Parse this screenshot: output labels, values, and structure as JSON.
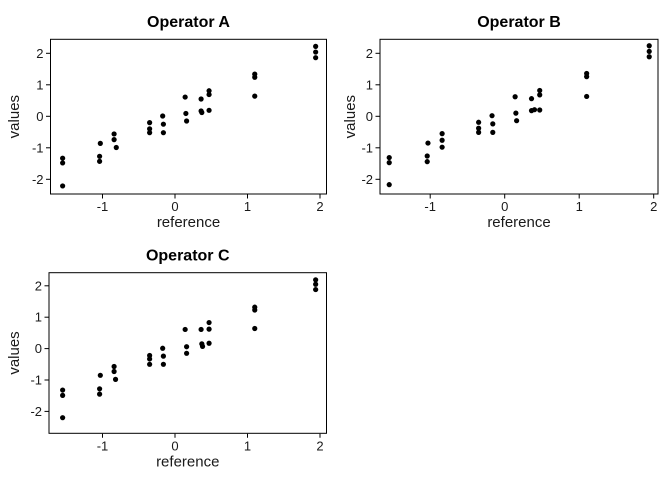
{
  "figure": {
    "background": "#ffffff",
    "border_color": "#000000",
    "point_color": "#000000",
    "text_color": "#1a1a1a"
  },
  "chart_data": [
    {
      "type": "scatter",
      "title": "Operator A",
      "xlabel": "reference",
      "ylabel": "values",
      "x_ticks": [
        -1,
        0,
        1,
        2
      ],
      "y_ticks": [
        -2,
        -1,
        0,
        1,
        2
      ],
      "xlim": [
        -1.72,
        2.09
      ],
      "ylim": [
        -2.47,
        2.44
      ],
      "grid": false,
      "legend": "none",
      "points": [
        [
          -1.55,
          -1.33
        ],
        [
          -1.55,
          -1.48
        ],
        [
          -1.55,
          -2.21
        ],
        [
          -1.03,
          -0.86
        ],
        [
          -1.04,
          -1.27
        ],
        [
          -1.04,
          -1.43
        ],
        [
          -0.84,
          -0.56
        ],
        [
          -0.84,
          -0.74
        ],
        [
          -0.81,
          -0.99
        ],
        [
          -0.35,
          -0.2
        ],
        [
          -0.35,
          -0.4
        ],
        [
          -0.35,
          -0.52
        ],
        [
          -0.17,
          0.01
        ],
        [
          -0.16,
          -0.25
        ],
        [
          -0.16,
          -0.52
        ],
        [
          0.14,
          0.61
        ],
        [
          0.15,
          0.09
        ],
        [
          0.16,
          -0.15
        ],
        [
          0.36,
          0.55
        ],
        [
          0.36,
          0.17
        ],
        [
          0.37,
          0.12
        ],
        [
          0.47,
          0.81
        ],
        [
          0.47,
          0.69
        ],
        [
          0.47,
          0.19
        ],
        [
          1.1,
          1.34
        ],
        [
          1.1,
          1.24
        ],
        [
          1.1,
          0.64
        ],
        [
          1.94,
          2.22
        ],
        [
          1.94,
          2.04
        ],
        [
          1.94,
          1.86
        ]
      ]
    },
    {
      "type": "scatter",
      "title": "Operator B",
      "xlabel": "reference",
      "ylabel": "values",
      "x_ticks": [
        -1,
        0,
        1,
        2
      ],
      "y_ticks": [
        -2,
        -1,
        0,
        1,
        2
      ],
      "xlim": [
        -1.67,
        2.06
      ],
      "ylim": [
        -2.47,
        2.44
      ],
      "grid": false,
      "legend": "none",
      "points": [
        [
          -1.55,
          -1.31
        ],
        [
          -1.55,
          -1.47
        ],
        [
          -1.55,
          -2.17
        ],
        [
          -1.03,
          -0.85
        ],
        [
          -1.04,
          -1.26
        ],
        [
          -1.04,
          -1.44
        ],
        [
          -0.84,
          -0.55
        ],
        [
          -0.84,
          -0.76
        ],
        [
          -0.84,
          -0.98
        ],
        [
          -0.35,
          -0.19
        ],
        [
          -0.35,
          -0.38
        ],
        [
          -0.35,
          -0.51
        ],
        [
          -0.17,
          0.02
        ],
        [
          -0.16,
          -0.24
        ],
        [
          -0.16,
          -0.51
        ],
        [
          0.14,
          0.62
        ],
        [
          0.15,
          0.1
        ],
        [
          0.16,
          -0.14
        ],
        [
          0.36,
          0.56
        ],
        [
          0.36,
          0.18
        ],
        [
          0.4,
          0.21
        ],
        [
          0.47,
          0.82
        ],
        [
          0.47,
          0.68
        ],
        [
          0.47,
          0.2
        ],
        [
          1.1,
          1.36
        ],
        [
          1.1,
          1.26
        ],
        [
          1.1,
          0.63
        ],
        [
          1.94,
          2.24
        ],
        [
          1.94,
          2.06
        ],
        [
          1.94,
          1.89
        ]
      ]
    },
    {
      "type": "scatter",
      "title": "Operator C",
      "xlabel": "reference",
      "ylabel": "values",
      "x_ticks": [
        -1,
        0,
        1,
        2
      ],
      "y_ticks": [
        -2,
        -1,
        0,
        1,
        2
      ],
      "xlim": [
        -1.74,
        2.11
      ],
      "ylim": [
        -2.7,
        2.42
      ],
      "grid": false,
      "legend": "none",
      "points": [
        [
          -1.55,
          -1.32
        ],
        [
          -1.55,
          -1.49
        ],
        [
          -1.55,
          -2.2
        ],
        [
          -1.03,
          -0.85
        ],
        [
          -1.04,
          -1.28
        ],
        [
          -1.04,
          -1.45
        ],
        [
          -0.84,
          -0.57
        ],
        [
          -0.84,
          -0.73
        ],
        [
          -0.82,
          -0.98
        ],
        [
          -0.35,
          -0.22
        ],
        [
          -0.35,
          -0.33
        ],
        [
          -0.35,
          -0.5
        ],
        [
          -0.17,
          0.01
        ],
        [
          -0.16,
          -0.24
        ],
        [
          -0.16,
          -0.5
        ],
        [
          0.14,
          0.61
        ],
        [
          0.16,
          0.06
        ],
        [
          0.16,
          -0.15
        ],
        [
          0.36,
          0.61
        ],
        [
          0.37,
          0.15
        ],
        [
          0.38,
          0.07
        ],
        [
          0.47,
          0.83
        ],
        [
          0.47,
          0.62
        ],
        [
          0.47,
          0.17
        ],
        [
          1.1,
          1.32
        ],
        [
          1.1,
          1.23
        ],
        [
          1.1,
          0.64
        ],
        [
          1.94,
          2.19
        ],
        [
          1.94,
          2.05
        ],
        [
          1.94,
          1.88
        ]
      ]
    }
  ]
}
